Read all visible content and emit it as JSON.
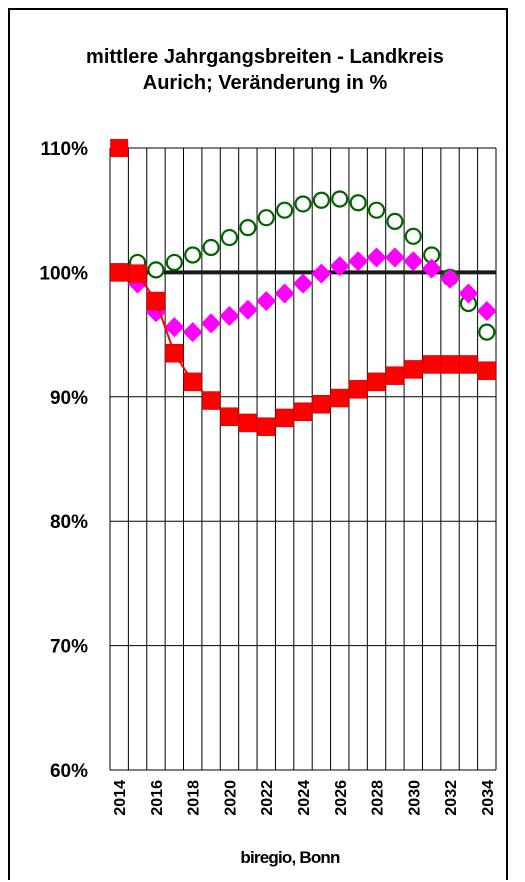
{
  "chart_data": {
    "type": "line",
    "title": [
      "mittlere Jahrgangsbreiten - Landkreis",
      "Aurich; Veränderung in %"
    ],
    "ylim": [
      60,
      110
    ],
    "yticks": [
      110,
      100,
      90,
      80,
      70,
      60
    ],
    "ytick_labels": [
      "110%",
      "100%",
      "90%",
      "80%",
      "70%",
      "60%"
    ],
    "x": [
      2014,
      2015,
      2016,
      2017,
      2018,
      2019,
      2020,
      2021,
      2022,
      2023,
      2024,
      2025,
      2026,
      2027,
      2028,
      2029,
      2030,
      2031,
      2032,
      2033,
      2034
    ],
    "xtick_labels": [
      "2014",
      "2016",
      "2018",
      "2020",
      "2022",
      "2024",
      "2026",
      "2028",
      "2030",
      "2032",
      "2034"
    ],
    "grid": true,
    "reference_line": 100,
    "series": [
      {
        "marker": "circle-open",
        "color": "#006400",
        "x": [
          2015,
          2016,
          2017,
          2018,
          2019,
          2020,
          2021,
          2022,
          2023,
          2024,
          2025,
          2026,
          2027,
          2028,
          2029,
          2030,
          2031,
          2032,
          2033,
          2034
        ],
        "values": [
          100.8,
          100.2,
          100.8,
          101.4,
          102.0,
          102.8,
          103.6,
          104.4,
          105.0,
          105.5,
          105.8,
          105.9,
          105.6,
          105.0,
          104.1,
          102.9,
          101.4,
          99.6,
          97.5,
          95.2
        ]
      },
      {
        "marker": "diamond",
        "color": "#ff00ff",
        "x": [
          2015,
          2016,
          2017,
          2018,
          2019,
          2020,
          2021,
          2022,
          2023,
          2024,
          2025,
          2026,
          2027,
          2028,
          2029,
          2030,
          2031,
          2032,
          2033,
          2034
        ],
        "values": [
          99.1,
          96.8,
          95.6,
          95.2,
          95.9,
          96.5,
          97.0,
          97.7,
          98.3,
          99.1,
          99.9,
          100.5,
          100.9,
          101.2,
          101.2,
          100.9,
          100.3,
          99.5,
          98.3,
          96.9
        ]
      },
      {
        "marker": "square",
        "color": "#ff0000",
        "x": [
          2014,
          2015,
          2016,
          2017,
          2018,
          2019,
          2020,
          2021,
          2022,
          2023,
          2024,
          2025,
          2026,
          2027,
          2028,
          2029,
          2030,
          2031,
          2032,
          2033,
          2034
        ],
        "values": [
          100.0,
          99.9,
          97.7,
          93.5,
          91.2,
          89.7,
          88.4,
          87.9,
          87.6,
          88.3,
          88.8,
          89.4,
          89.9,
          90.6,
          91.2,
          91.7,
          92.2,
          92.6,
          92.6,
          92.6,
          92.1
        ]
      }
    ],
    "outlier_marker": {
      "x": 2014,
      "value": 110,
      "marker": "square",
      "color": "#ff0000"
    }
  },
  "source": "biregio, Bonn"
}
